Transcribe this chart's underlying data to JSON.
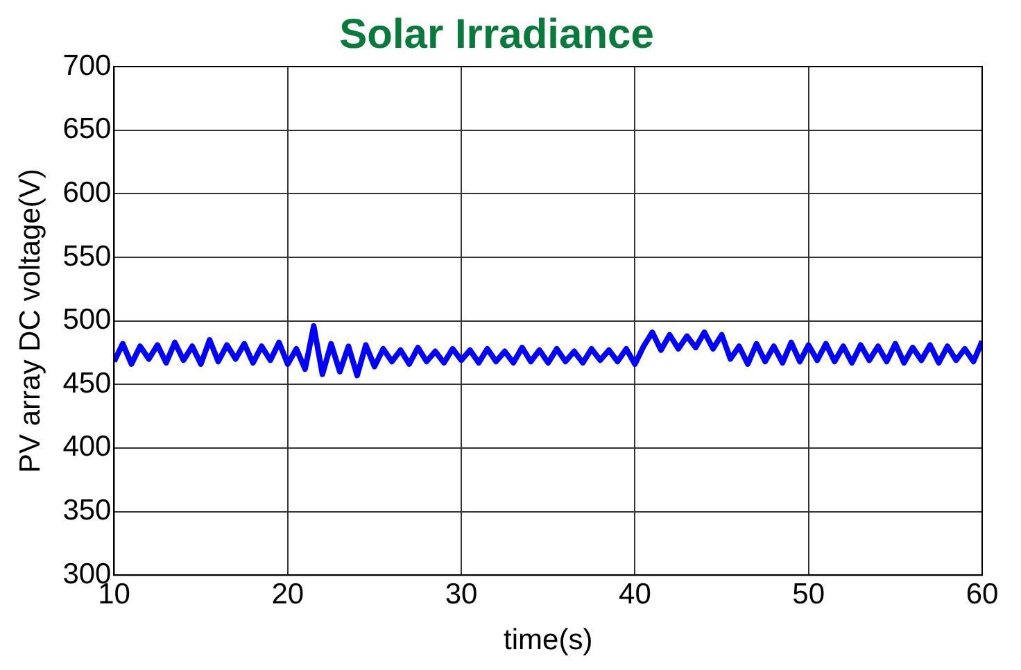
{
  "chart_data": {
    "type": "line",
    "title": "Solar Irradiance",
    "xlabel": "time(s)",
    "ylabel": "PV array DC voltage(V)",
    "x": [
      10,
      10.5,
      11,
      11.5,
      12,
      12.5,
      13,
      13.5,
      14,
      14.5,
      15,
      15.5,
      16,
      16.5,
      17,
      17.5,
      18,
      18.5,
      19,
      19.5,
      20,
      20.5,
      21,
      21.5,
      22,
      22.5,
      23,
      23.5,
      24,
      24.5,
      25,
      25.5,
      26,
      26.5,
      27,
      27.5,
      28,
      28.5,
      29,
      29.5,
      30,
      30.5,
      31,
      31.5,
      32,
      32.5,
      33,
      33.5,
      34,
      34.5,
      35,
      35.5,
      36,
      36.5,
      37,
      37.5,
      38,
      38.5,
      39,
      39.5,
      40,
      40.5,
      41,
      41.5,
      42,
      42.5,
      43,
      43.5,
      44,
      44.5,
      45,
      45.5,
      46,
      46.5,
      47,
      47.5,
      48,
      48.5,
      49,
      49.5,
      50,
      50.5,
      51,
      51.5,
      52,
      52.5,
      53,
      53.5,
      54,
      54.5,
      55,
      55.5,
      56,
      56.5,
      57,
      57.5,
      58,
      58.5,
      59,
      59.5,
      60
    ],
    "series": [
      {
        "color": "#0000ff",
        "values": [
          468,
          482,
          466,
          480,
          470,
          481,
          467,
          483,
          469,
          480,
          466,
          485,
          468,
          481,
          470,
          482,
          467,
          480,
          469,
          483,
          466,
          478,
          462,
          496,
          458,
          482,
          460,
          480,
          457,
          481,
          464,
          478,
          468,
          477,
          466,
          479,
          468,
          476,
          467,
          478,
          469,
          477,
          467,
          478,
          468,
          476,
          467,
          479,
          468,
          477,
          467,
          478,
          468,
          476,
          467,
          478,
          469,
          477,
          468,
          478,
          466,
          480,
          491,
          477,
          489,
          478,
          488,
          479,
          491,
          478,
          489,
          470,
          480,
          466,
          482,
          468,
          480,
          467,
          483,
          468,
          481,
          469,
          482,
          468,
          480,
          467,
          481,
          469,
          480,
          468,
          482,
          467,
          479,
          469,
          481,
          467,
          480,
          469,
          478,
          468,
          484
        ]
      }
    ],
    "xlim": [
      10,
      60
    ],
    "xticks": [
      10,
      20,
      30,
      40,
      50,
      60
    ],
    "ylim": [
      300,
      700
    ],
    "yticks": [
      300,
      350,
      400,
      450,
      500,
      550,
      600,
      650,
      700
    ],
    "grid": true,
    "legend": false,
    "marker": "none",
    "line_style": "solid"
  }
}
